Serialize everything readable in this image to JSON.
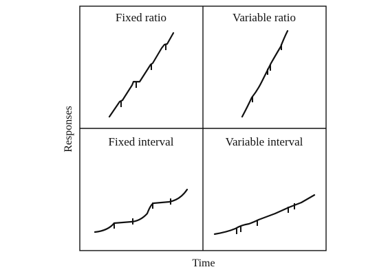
{
  "axes": {
    "x_label": "Time",
    "y_label": "Responses"
  },
  "panels": [
    {
      "id": "fixed-ratio",
      "title": "Fixed ratio"
    },
    {
      "id": "variable-ratio",
      "title": "Variable ratio"
    },
    {
      "id": "fixed-interval",
      "title": "Fixed interval"
    },
    {
      "id": "variable-interval",
      "title": "Variable interval"
    }
  ],
  "colors": {
    "line": "#111111",
    "background": "#ffffff"
  }
}
